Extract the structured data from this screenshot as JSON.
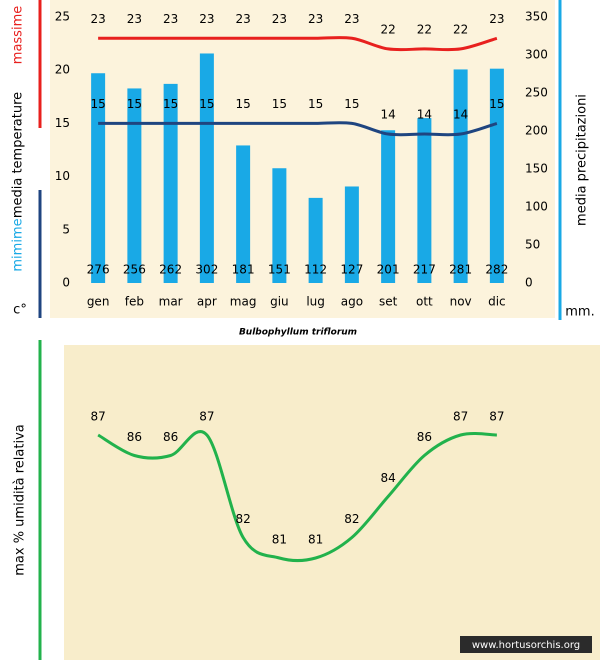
{
  "chart_data": [
    {
      "type": "bar",
      "title": "Bulbophyllum triflorum",
      "categories": [
        "gen",
        "feb",
        "mar",
        "apr",
        "mag",
        "giu",
        "lug",
        "ago",
        "set",
        "ott",
        "nov",
        "dic"
      ],
      "ylabel": "media temperature",
      "yunit": "c°",
      "y2label": "media precipitazioni",
      "y2unit": "mm.",
      "ylim": [
        0,
        25
      ],
      "yticks": [
        0,
        5,
        10,
        15,
        20,
        25
      ],
      "y2lim": [
        0,
        350
      ],
      "y2ticks": [
        0,
        50,
        100,
        150,
        200,
        250,
        300,
        350
      ],
      "series": [
        {
          "name": "media precipitazioni",
          "type": "bar",
          "axis": "y2",
          "color": "#19a9e6",
          "values": [
            276,
            256,
            262,
            302,
            181,
            151,
            112,
            127,
            201,
            217,
            281,
            282
          ]
        },
        {
          "name": "massime",
          "type": "line",
          "color": "#e8201e",
          "values": [
            23,
            23,
            23,
            23,
            23,
            23,
            23,
            23,
            22,
            22,
            22,
            23
          ]
        },
        {
          "name": "mimime",
          "type": "line",
          "color": "#1f4580",
          "values": [
            15,
            15,
            15,
            15,
            15,
            15,
            15,
            15,
            14,
            14,
            14,
            15
          ]
        }
      ]
    },
    {
      "type": "line",
      "ylabel": "max % umidità relativa",
      "color": "#22b24c",
      "values": [
        87,
        86,
        86,
        87,
        82,
        81,
        81,
        82,
        84,
        86,
        87,
        87
      ]
    }
  ],
  "watermark": "www.hortusorchis.org"
}
